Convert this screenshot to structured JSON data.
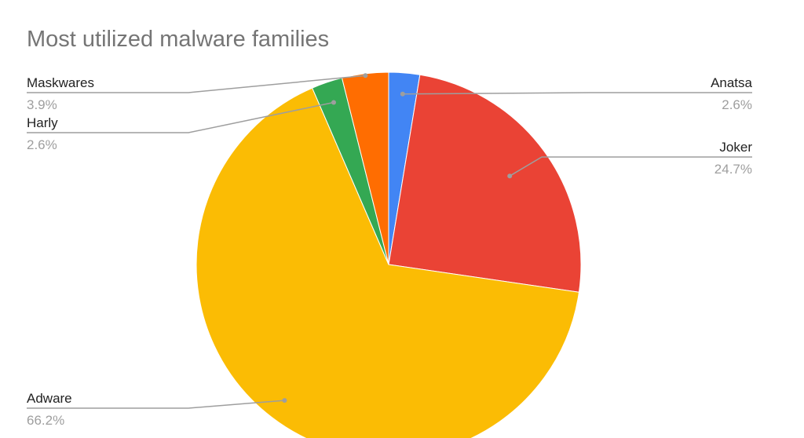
{
  "chart_data": {
    "type": "pie",
    "title": "Most utilized malware families",
    "slices": [
      {
        "label": "Anatsa",
        "value": 2.6,
        "display": "2.6%",
        "color": "#4285f4"
      },
      {
        "label": "Joker",
        "value": 24.7,
        "display": "24.7%",
        "color": "#ea4335"
      },
      {
        "label": "Adware",
        "value": 66.2,
        "display": "66.2%",
        "color": "#fbbc04"
      },
      {
        "label": "Harly",
        "value": 2.6,
        "display": "2.6%",
        "color": "#34a853"
      },
      {
        "label": "Maskwares",
        "value": 3.9,
        "display": "3.9%",
        "color": "#ff6d01"
      }
    ],
    "legend": "none"
  }
}
